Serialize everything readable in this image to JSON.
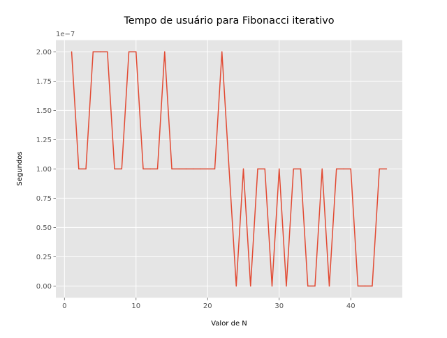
{
  "chart_data": {
    "type": "line",
    "title": "Tempo de usuário para Fibonacci iterativo",
    "xlabel": "Valor de N",
    "ylabel": "Segundos",
    "y_offset_label": "1e−7",
    "xlim": [
      -1.2,
      47.2
    ],
    "ylim": [
      -0.1,
      2.1
    ],
    "x_ticks": [
      0,
      10,
      20,
      30,
      40
    ],
    "x_tick_labels": [
      "0",
      "10",
      "20",
      "30",
      "40"
    ],
    "y_ticks": [
      0,
      0.25,
      0.5,
      0.75,
      1.0,
      1.25,
      1.5,
      1.75,
      2.0
    ],
    "y_tick_labels": [
      "0.00",
      "0.25",
      "0.50",
      "0.75",
      "1.00",
      "1.25",
      "1.50",
      "1.75",
      "2.00"
    ],
    "grid": true,
    "style": "ggplot",
    "series": [
      {
        "color": "#E24A33",
        "x": [
          1,
          2,
          3,
          4,
          5,
          6,
          7,
          8,
          9,
          10,
          11,
          12,
          13,
          14,
          15,
          16,
          17,
          18,
          19,
          20,
          21,
          22,
          23,
          24,
          25,
          26,
          27,
          28,
          29,
          30,
          31,
          32,
          33,
          34,
          35,
          36,
          37,
          38,
          39,
          40,
          41,
          42,
          43,
          44,
          45
        ],
        "values": [
          2,
          1,
          1,
          2,
          2,
          2,
          1,
          1,
          2,
          2,
          1,
          1,
          1,
          2,
          1,
          1,
          1,
          1,
          1,
          1,
          1,
          2,
          1,
          0,
          1,
          0,
          1,
          1,
          0,
          1,
          0,
          1,
          1,
          0,
          0,
          1,
          0,
          1,
          1,
          1,
          0,
          0,
          0,
          1,
          1
        ]
      }
    ]
  }
}
